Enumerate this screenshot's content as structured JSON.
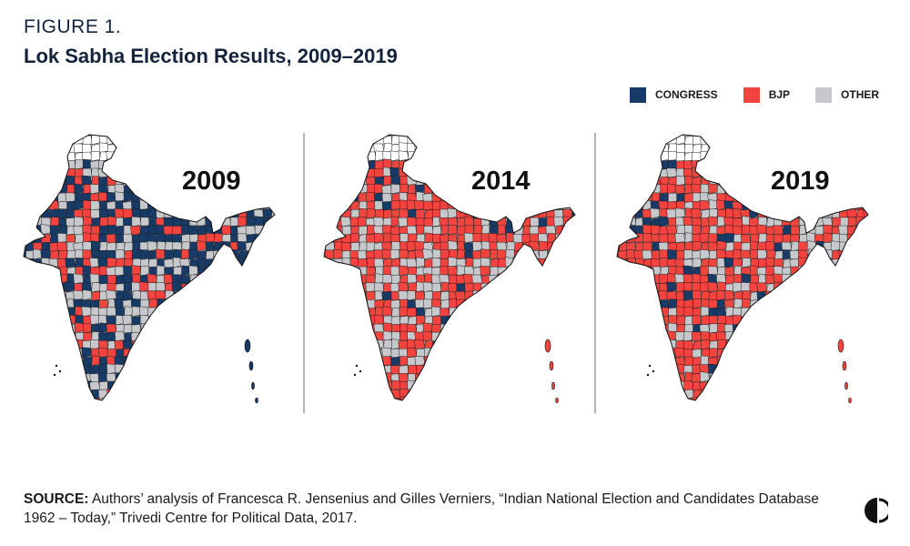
{
  "figure": {
    "label": "FIGURE 1.",
    "title": "Lok Sabha Election Results, 2009–2019"
  },
  "legend": [
    {
      "label": "CONGRESS",
      "color": "#173a66"
    },
    {
      "label": "BJP",
      "color": "#f2433f"
    },
    {
      "label": "OTHER",
      "color": "#c6c8cb"
    }
  ],
  "colors": {
    "congress": "#173a66",
    "bjp": "#f2433f",
    "other": "#c6c8cb",
    "border": "#222222",
    "jk_unassigned": "#ffffff"
  },
  "maps": [
    {
      "year": "2009",
      "dominant": "mixed",
      "composition": {
        "congress": 0.42,
        "bjp": 0.22,
        "other": 0.36
      }
    },
    {
      "year": "2014",
      "dominant": "bjp",
      "composition": {
        "congress": 0.08,
        "bjp": 0.56,
        "other": 0.36
      }
    },
    {
      "year": "2019",
      "dominant": "bjp",
      "composition": {
        "congress": 0.1,
        "bjp": 0.6,
        "other": 0.3
      }
    }
  ],
  "source": {
    "label": "SOURCE:",
    "text": "Authors’ analysis of Francesca R. Jensenius and Gilles Verniers, “Indian National Election and Candidates Database 1962 – Today,” Trivedi Centre for Political Data, 2017."
  },
  "logo": {
    "icon": "carnegie-logo-icon"
  }
}
